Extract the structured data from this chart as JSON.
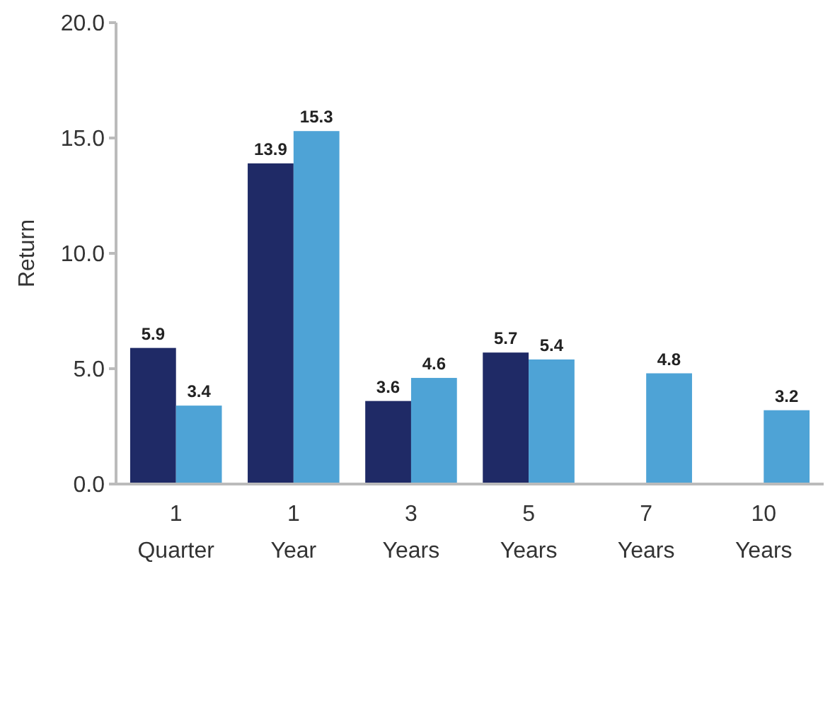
{
  "chart_data": {
    "type": "bar",
    "ylabel": "Return",
    "categories": [
      "1\nQuarter",
      "1\nYear",
      "3\nYears",
      "5\nYears",
      "7\nYears",
      "10\nYears"
    ],
    "series": [
      {
        "color": "#1f2a66",
        "values": [
          5.9,
          13.9,
          3.6,
          5.7,
          null,
          null
        ]
      },
      {
        "color": "#4ea3d6",
        "values": [
          3.4,
          15.3,
          4.6,
          5.4,
          4.8,
          3.2
        ]
      }
    ],
    "ylim": [
      0,
      20
    ],
    "yticks": [
      {
        "value": 0,
        "label": "0.0"
      },
      {
        "value": 5,
        "label": "5.0"
      },
      {
        "value": 10,
        "label": "10.0"
      },
      {
        "value": 15,
        "label": "15.0"
      },
      {
        "value": 20,
        "label": "20.0"
      }
    ],
    "data_labels": true
  }
}
